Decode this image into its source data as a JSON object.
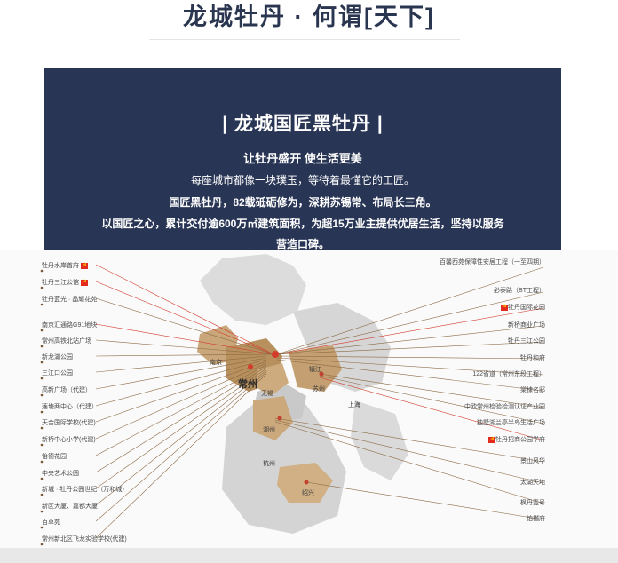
{
  "header": {
    "title": "龙城牡丹 · 何谓[天下]"
  },
  "banner": {
    "heading": "| 龙城国匠黑牡丹 |",
    "subheading": "让牡丹盛开 使生活更美",
    "line1": "每座城市都像一块璞玉，等待着最懂它的工匠。",
    "line2": "国匠黑牡丹，82载砥砺修为，深耕苏锡常、布局长三角。",
    "line3": "以国匠之心，累计交付逾600万㎡建筑面积，为超15万业主提供优居生活，坚持以服务",
    "line4": "营造口碑。"
  },
  "map": {
    "cities": {
      "main": "常州",
      "nanjing": "南京",
      "wuxi": "无锡",
      "suzhou": "苏州",
      "shanghai": "上海",
      "huzhou": "湖州",
      "hangzhou": "杭州",
      "shaoxing": "绍兴",
      "zhenjiang": "镇江"
    },
    "left_projects": [
      {
        "label": "牡丹水岸首府",
        "flag": true
      },
      {
        "label": "牡丹三江公馆",
        "flag": true
      },
      {
        "label": "牡丹蓝光 · 晶耀花苑",
        "flag": false
      },
      {
        "label": "南京汇通路G91地块",
        "flag": false
      },
      {
        "label": "常州高铁北站广场",
        "flag": false
      },
      {
        "label": "新龙湖公园",
        "flag": false
      },
      {
        "label": "三江口公园",
        "flag": false
      },
      {
        "label": "高新广场（代建）",
        "flag": false
      },
      {
        "label": "莲塘两中心（代建）",
        "flag": false
      },
      {
        "label": "天合国际学校(代建)",
        "flag": false
      },
      {
        "label": "新桥中心小学(代建)",
        "flag": false
      },
      {
        "label": "怡德花园",
        "flag": false
      },
      {
        "label": "中央艺术公园",
        "flag": false
      },
      {
        "label": "新城 · 牡丹公园世纪（万和城）",
        "flag": false
      },
      {
        "label": "新区大厦、嘉都大厦",
        "flag": false
      },
      {
        "label": "百草苑",
        "flag": false
      },
      {
        "label": "常州新北区飞龙实验学校(代建)",
        "flag": false
      }
    ],
    "right_projects": [
      {
        "label": "百馨西苑保障性安居工程（一至四期）",
        "flag": false
      },
      {
        "label": "必泰路（BT工程）",
        "flag": false
      },
      {
        "label": "牡丹国际花园",
        "flag": true
      },
      {
        "label": "新桥商业广场",
        "flag": false
      },
      {
        "label": "牡丹三江公园",
        "flag": false
      },
      {
        "label": "牡丹和府",
        "flag": false
      },
      {
        "label": "122省道（常州东段工程）",
        "flag": false
      },
      {
        "label": "棠棣名邸",
        "flag": false
      },
      {
        "label": "中欧常州检验检测认证产业园",
        "flag": false
      },
      {
        "label": "独墅湖兰亭半岛生活广场",
        "flag": false
      },
      {
        "label": "牡丹招商公园学府",
        "flag": true
      },
      {
        "label": "景山风华",
        "flag": false
      },
      {
        "label": "太湖天地",
        "flag": false
      },
      {
        "label": "枫丹壹号",
        "flag": false
      },
      {
        "label": "铂樾府",
        "flag": false
      }
    ]
  }
}
